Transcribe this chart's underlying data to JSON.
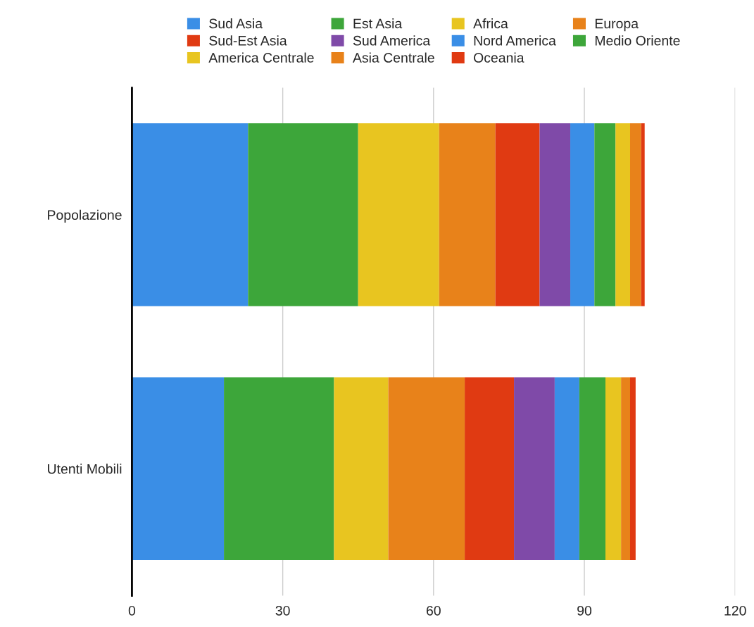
{
  "chart_data": {
    "type": "bar",
    "orientation": "horizontal",
    "stacked": true,
    "categories": [
      "Popolazione",
      "Utenti Mobili"
    ],
    "series": [
      {
        "name": "Sud Asia",
        "color": "#3a8ee6",
        "values": [
          23.1,
          18.3
        ]
      },
      {
        "name": "Est Asia",
        "color": "#3da63a",
        "values": [
          21.9,
          21.9
        ]
      },
      {
        "name": "Africa",
        "color": "#e8c520",
        "values": [
          16.1,
          10.8
        ]
      },
      {
        "name": "Europa",
        "color": "#e8821a",
        "values": [
          11.2,
          15.2
        ]
      },
      {
        "name": "Sud-Est Asia",
        "color": "#e03a12",
        "values": [
          8.8,
          9.8
        ]
      },
      {
        "name": "Sud America",
        "color": "#7f4aa8",
        "values": [
          6.1,
          8.1
        ]
      },
      {
        "name": "Nord America",
        "color": "#3a8ee6",
        "values": [
          4.8,
          4.9
        ]
      },
      {
        "name": "Medio Oriente",
        "color": "#3da63a",
        "values": [
          4.2,
          5.2
        ]
      },
      {
        "name": "America Centrale",
        "color": "#e8c520",
        "values": [
          2.9,
          3.1
        ]
      },
      {
        "name": "Asia Centrale",
        "color": "#e8821a",
        "values": [
          2.2,
          1.8
        ]
      },
      {
        "name": "Oceania",
        "color": "#e03a12",
        "values": [
          0.7,
          1.1
        ]
      }
    ],
    "xlim": [
      0,
      120
    ],
    "xticks": [
      0,
      30,
      60,
      90,
      120
    ],
    "grid": "x",
    "legend": "top"
  }
}
